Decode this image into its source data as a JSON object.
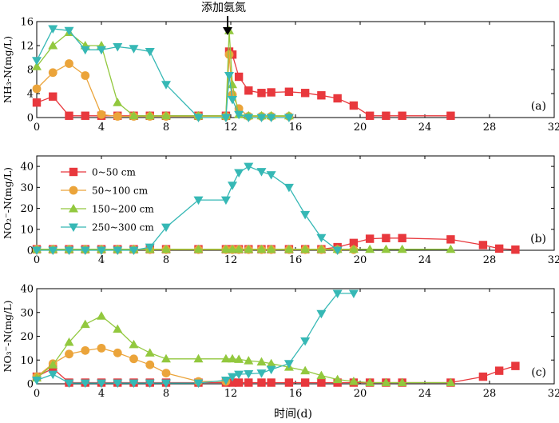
{
  "figure": {
    "annotation": "添加氨氮",
    "xlabel": "时间(d)",
    "x_ticks": [
      "0",
      "4",
      "8",
      "12",
      "16",
      "20",
      "24",
      "28",
      "32"
    ]
  },
  "chart_data": [
    {
      "type": "line",
      "panel_label": "(a)",
      "ylabel": "NH₃-N(mg/L)",
      "xlim": [
        0,
        32
      ],
      "ylim": [
        0,
        16
      ],
      "y_ticks": [
        "0",
        "4",
        "8",
        "12",
        "16"
      ],
      "series": [
        {
          "name": "0~50 cm",
          "color": "#e8383d",
          "marker": "square",
          "x": [
            0,
            1,
            2,
            3,
            4,
            5,
            6,
            7,
            8,
            10,
            11.7,
            11.9,
            12.1,
            12.5,
            13.1,
            13.9,
            14.5,
            15.6,
            16.6,
            17.6,
            18.6,
            19.6,
            20.6,
            21.6,
            22.6,
            25.6
          ],
          "y": [
            2.5,
            3.5,
            0.3,
            0.3,
            0.3,
            0.3,
            0.3,
            0.3,
            0.3,
            0.3,
            0.3,
            11,
            10.5,
            6.8,
            4.5,
            4.1,
            4.2,
            4.3,
            4.1,
            3.7,
            3.2,
            2,
            0.3,
            0.3,
            0.3,
            0.3
          ]
        },
        {
          "name": "50~100 cm",
          "color": "#eba43a",
          "marker": "circle",
          "x": [
            0,
            1,
            2,
            3,
            4,
            5,
            6,
            7,
            8,
            10,
            11.7,
            11.9,
            12.1,
            12.5,
            13.1,
            13.9,
            14.5,
            15.6
          ],
          "y": [
            4.8,
            7.5,
            9,
            7,
            0.5,
            0.2,
            0.2,
            0.2,
            0.2,
            0.2,
            0.2,
            10.5,
            3.8,
            1.5,
            0.2,
            0.2,
            0.2,
            0.2
          ]
        },
        {
          "name": "150~200 cm",
          "color": "#92c83e",
          "marker": "triangle-up",
          "x": [
            0,
            1,
            2,
            3,
            4,
            5,
            6,
            7,
            8,
            10,
            11.7,
            11.9,
            12.1,
            12.5,
            13.1,
            13.9,
            14.5,
            15.6
          ],
          "y": [
            8.5,
            12,
            14.2,
            12,
            12,
            2.5,
            0.3,
            0.3,
            0.3,
            0.3,
            0.3,
            14.5,
            5.5,
            0.5,
            0.3,
            0.3,
            0.3,
            0.3
          ]
        },
        {
          "name": "250~300 cm",
          "color": "#36b8b5",
          "marker": "triangle-down",
          "x": [
            0,
            1,
            2,
            3,
            4,
            5,
            6,
            7,
            8,
            10,
            11.7,
            11.9,
            12.1,
            12.5,
            13.1,
            13.9,
            14.5,
            15.6
          ],
          "y": [
            9.5,
            14.8,
            14.5,
            11.3,
            11.3,
            11.8,
            11.5,
            11,
            5.5,
            0,
            0,
            7,
            3,
            0.5,
            0,
            0,
            0,
            0
          ]
        }
      ]
    },
    {
      "type": "line",
      "panel_label": "(b)",
      "ylabel": "NO₂⁻-N(mg/L)",
      "xlim": [
        0,
        32
      ],
      "ylim": [
        0,
        45
      ],
      "y_ticks": [
        "0",
        "10",
        "20",
        "30",
        "40"
      ],
      "legend": "upper-left",
      "series": [
        {
          "name": "0~50 cm",
          "color": "#e8383d",
          "marker": "square",
          "x": [
            0,
            1,
            2,
            3,
            4,
            5,
            6,
            7,
            8,
            10,
            11.7,
            12.1,
            12.5,
            13.1,
            13.9,
            14.5,
            15.6,
            16.6,
            17.6,
            18.6,
            19.6,
            20.6,
            21.6,
            22.6,
            25.6,
            27.6,
            28.6,
            29.6
          ],
          "y": [
            0.5,
            0.5,
            0.5,
            0.5,
            0.5,
            0.5,
            0.5,
            0.5,
            0.5,
            0.5,
            0.5,
            0.5,
            0.5,
            0.5,
            0.5,
            0.5,
            0.5,
            0.5,
            0.5,
            1.5,
            3.5,
            5.5,
            5.8,
            5.8,
            5.2,
            2.5,
            0.8,
            0.3
          ]
        },
        {
          "name": "50~100 cm",
          "color": "#eba43a",
          "marker": "circle",
          "x": [
            0,
            1,
            2,
            3,
            4,
            5,
            6,
            7,
            8,
            10,
            11.7,
            12.1,
            12.5,
            13.1,
            13.9,
            14.5,
            15.6,
            16.6,
            17.6,
            18.6,
            19.6
          ],
          "y": [
            0.3,
            0.3,
            0.3,
            0.3,
            0.3,
            0.3,
            0.3,
            0.3,
            0.3,
            0.3,
            0.3,
            0.3,
            0.3,
            0.3,
            0.3,
            0.3,
            0.3,
            0.3,
            0.3,
            0.3,
            0.3
          ]
        },
        {
          "name": "150~200 cm",
          "color": "#92c83e",
          "marker": "triangle-up",
          "x": [
            0,
            1,
            2,
            3,
            4,
            5,
            6,
            7,
            8,
            10,
            11.7,
            12.1,
            12.5,
            13.1,
            13.9,
            14.5,
            15.6,
            16.6,
            17.6,
            18.6,
            19.6,
            20.6,
            21.6,
            22.6,
            25.6
          ],
          "y": [
            0.5,
            0.5,
            0.5,
            0.5,
            0.5,
            0.5,
            0.5,
            0.5,
            0.5,
            0.5,
            0.5,
            0.5,
            0.5,
            0.5,
            0.5,
            0.5,
            0.5,
            0.5,
            0.5,
            0.5,
            0.5,
            0.5,
            0.5,
            0.5,
            0.5
          ]
        },
        {
          "name": "250~300 cm",
          "color": "#36b8b5",
          "marker": "triangle-down",
          "x": [
            0,
            1,
            2,
            3,
            4,
            5,
            6,
            7,
            8,
            10,
            11.7,
            12.1,
            12.5,
            13.1,
            13.9,
            14.5,
            15.6,
            16.6,
            17.6,
            18.6
          ],
          "y": [
            0,
            0,
            0,
            0,
            0,
            0,
            0,
            1.5,
            11,
            24,
            24,
            31,
            37,
            40,
            37.5,
            36,
            30,
            17,
            6,
            0
          ]
        }
      ]
    },
    {
      "type": "line",
      "panel_label": "(c)",
      "ylabel": "NO₃⁻-N(mg/L)",
      "xlim": [
        0,
        32
      ],
      "ylim": [
        0,
        40
      ],
      "y_ticks": [
        "0",
        "10",
        "20",
        "30",
        "40"
      ],
      "series": [
        {
          "name": "0~50 cm",
          "color": "#e8383d",
          "marker": "square",
          "x": [
            0,
            1,
            2,
            3,
            4,
            5,
            6,
            7,
            8,
            10,
            11.7,
            12.1,
            12.5,
            13.1,
            13.9,
            14.5,
            15.6,
            16.6,
            17.6,
            18.6,
            19.6,
            20.6,
            21.6,
            22.6,
            25.6,
            27.6,
            28.6,
            29.6
          ],
          "y": [
            3,
            6.5,
            0.5,
            0.5,
            0.5,
            0.5,
            0.5,
            0.5,
            0.5,
            0.5,
            0.5,
            0.5,
            0.5,
            0.5,
            0.5,
            0.5,
            0.5,
            0.5,
            0.5,
            0.5,
            0.5,
            0.5,
            0.5,
            0.5,
            0.5,
            3,
            5.5,
            7.5
          ]
        },
        {
          "name": "50~100 cm",
          "color": "#eba43a",
          "marker": "circle",
          "x": [
            0,
            1,
            2,
            3,
            4,
            5,
            6,
            7,
            8,
            10,
            11.7
          ],
          "y": [
            3,
            8.5,
            12.5,
            14,
            15,
            13,
            10.5,
            8,
            4.5,
            1,
            1
          ]
        },
        {
          "name": "150~200 cm",
          "color": "#92c83e",
          "marker": "triangle-up",
          "x": [
            0,
            1,
            2,
            3,
            4,
            5,
            6,
            7,
            8,
            10,
            11.7,
            12.1,
            12.5,
            13.1,
            13.9,
            14.5,
            15.6,
            16.6,
            17.6,
            18.6,
            19.6,
            20.6,
            21.6,
            22.6,
            25.6
          ],
          "y": [
            2.5,
            8,
            17.5,
            25,
            28.5,
            23,
            16.5,
            13,
            10.5,
            10.5,
            10.5,
            10.5,
            10.3,
            9.7,
            9.2,
            8.5,
            7,
            5.5,
            3.5,
            1.8,
            1,
            0.5,
            0.5,
            0.5,
            0.5
          ]
        },
        {
          "name": "250~300 cm",
          "color": "#36b8b5",
          "marker": "triangle-down",
          "x": [
            0,
            1,
            2,
            3,
            4,
            5,
            6,
            7,
            8,
            10,
            11.7,
            12.1,
            12.5,
            13.1,
            13.9,
            14.5,
            15.6,
            16.6,
            17.6,
            18.6,
            19.6
          ],
          "y": [
            1.5,
            4,
            0.3,
            0.3,
            0.3,
            0.3,
            0.3,
            0.3,
            0.3,
            0.3,
            1.5,
            3,
            4,
            4.2,
            4.5,
            6,
            8.5,
            18,
            29.5,
            38,
            38
          ]
        }
      ]
    }
  ]
}
